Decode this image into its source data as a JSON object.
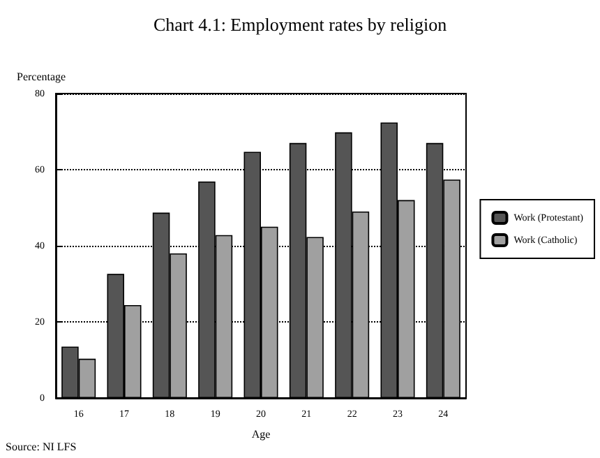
{
  "chart_data": {
    "type": "bar",
    "title": "Chart 4.1: Employment rates by religion",
    "xlabel": "Age",
    "ylabel": "Percentage",
    "categories": [
      "16",
      "17",
      "18",
      "19",
      "20",
      "21",
      "22",
      "23",
      "24"
    ],
    "series": [
      {
        "name": "Work (Protestant)",
        "color": "#555555",
        "values": [
          13.5,
          32.6,
          48.7,
          56.9,
          64.7,
          67,
          69.8,
          72.4,
          67
        ]
      },
      {
        "name": "Work (Catholic)",
        "color": "#a0a0a0",
        "values": [
          10.3,
          24.4,
          38,
          42.8,
          45,
          42.3,
          49,
          52,
          57.4
        ]
      }
    ],
    "ylim": [
      0,
      80
    ],
    "yticks": [
      0,
      20,
      40,
      60,
      80
    ],
    "grid": "y",
    "legend": "right",
    "annotations": [
      "Source: NI LFS"
    ]
  }
}
